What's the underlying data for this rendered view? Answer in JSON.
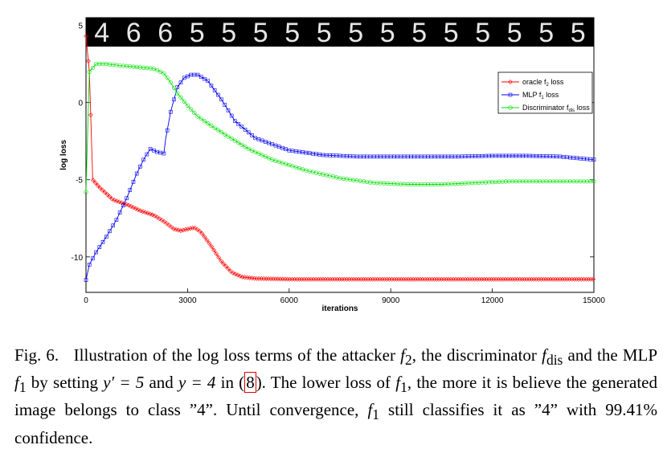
{
  "chart_data": {
    "type": "line",
    "title": "",
    "xlabel": "iterations",
    "ylabel": "log loss",
    "xlim": [
      0,
      15000
    ],
    "ylim": [
      -12.3,
      5.5
    ],
    "xticks": [
      0,
      3000,
      6000,
      9000,
      12000,
      15000
    ],
    "xtick_labels": [
      "0",
      "3000",
      "6000",
      "9000",
      "12000",
      "15000"
    ],
    "yticks": [
      -10,
      -5,
      0,
      5
    ],
    "ytick_labels": [
      "-10",
      "-5",
      "0",
      "5"
    ],
    "grid": false,
    "legend": "top-right",
    "digit_strip": [
      "4",
      "6",
      "6",
      "5",
      "5",
      "5",
      "5",
      "5",
      "5",
      "5",
      "5",
      "5",
      "5",
      "5",
      "5",
      "5"
    ],
    "series": [
      {
        "name": "oracle f2 loss",
        "legend_label": "oracle f",
        "legend_sub": "2",
        "legend_suffix": " loss",
        "color": "#ff0000",
        "x": [
          0,
          100,
          200,
          400,
          800,
          1200,
          1600,
          2000,
          2300,
          2600,
          2800,
          3000,
          3200,
          3400,
          3700,
          4000,
          4300,
          4600,
          5000,
          6000,
          8000,
          10000,
          12000,
          14000,
          15000
        ],
        "y": [
          4.3,
          2.0,
          -5.0,
          -5.5,
          -6.3,
          -6.6,
          -7.0,
          -7.3,
          -7.7,
          -8.2,
          -8.3,
          -8.2,
          -8.1,
          -8.4,
          -9.3,
          -10.3,
          -11.0,
          -11.3,
          -11.4,
          -11.45,
          -11.45,
          -11.45,
          -11.45,
          -11.45,
          -11.45
        ]
      },
      {
        "name": "MLP f1 loss",
        "legend_label": "MLP f",
        "legend_sub": "1",
        "legend_suffix": " loss",
        "color": "#0000ee",
        "x": [
          0,
          100,
          300,
          600,
          900,
          1200,
          1500,
          1700,
          1900,
          2100,
          2300,
          2350,
          2500,
          2700,
          2900,
          3100,
          3300,
          3600,
          4000,
          4400,
          5000,
          6000,
          7000,
          8000,
          9000,
          10000,
          11000,
          12000,
          13000,
          14000,
          15000
        ],
        "y": [
          -11.5,
          -10.5,
          -9.7,
          -8.7,
          -7.6,
          -6.2,
          -4.6,
          -3.7,
          -3.0,
          -3.2,
          -3.3,
          -2.4,
          -0.6,
          1.0,
          1.6,
          1.8,
          1.8,
          1.4,
          0.2,
          -1.2,
          -2.3,
          -3.1,
          -3.4,
          -3.5,
          -3.5,
          -3.5,
          -3.5,
          -3.45,
          -3.45,
          -3.5,
          -3.7
        ]
      },
      {
        "name": "Discriminator fdis loss",
        "legend_label": "Discriminator f",
        "legend_sub": "dis",
        "legend_suffix": " loss",
        "color": "#00dd00",
        "x": [
          0,
          100,
          300,
          600,
          1000,
          1500,
          2000,
          2300,
          2500,
          2700,
          3000,
          3300,
          3700,
          4200,
          4800,
          5500,
          6500,
          7500,
          8500,
          9500,
          10500,
          11500,
          12500,
          13500,
          14500,
          15000
        ],
        "y": [
          -5.8,
          2.0,
          2.5,
          2.5,
          2.4,
          2.3,
          2.2,
          1.9,
          1.3,
          0.6,
          -0.2,
          -0.9,
          -1.5,
          -2.2,
          -3.0,
          -3.7,
          -4.4,
          -4.9,
          -5.2,
          -5.3,
          -5.3,
          -5.2,
          -5.1,
          -5.1,
          -5.1,
          -5.1
        ]
      }
    ]
  },
  "caption": {
    "fig_label": "Fig. 6.",
    "text_1": "Illustration of the log loss terms of the attacker ",
    "f_sym": "f",
    "sub_2": "2",
    "text_2": ", the discriminator ",
    "sub_dis": "dis",
    "text_3": " and the MLP ",
    "sub_1": "1",
    "text_4": " by setting ",
    "eq_1": "y′ = 5",
    "text_5": " and ",
    "eq_2": "y = 4",
    "text_6": " in (",
    "ref": "8",
    "text_7": "). The lower loss of ",
    "text_8": ", the more it is believe the generated image belongs to class ”4”. Until convergence, ",
    "text_9": " still classifies it as ”4” with 99.41% confidence."
  }
}
